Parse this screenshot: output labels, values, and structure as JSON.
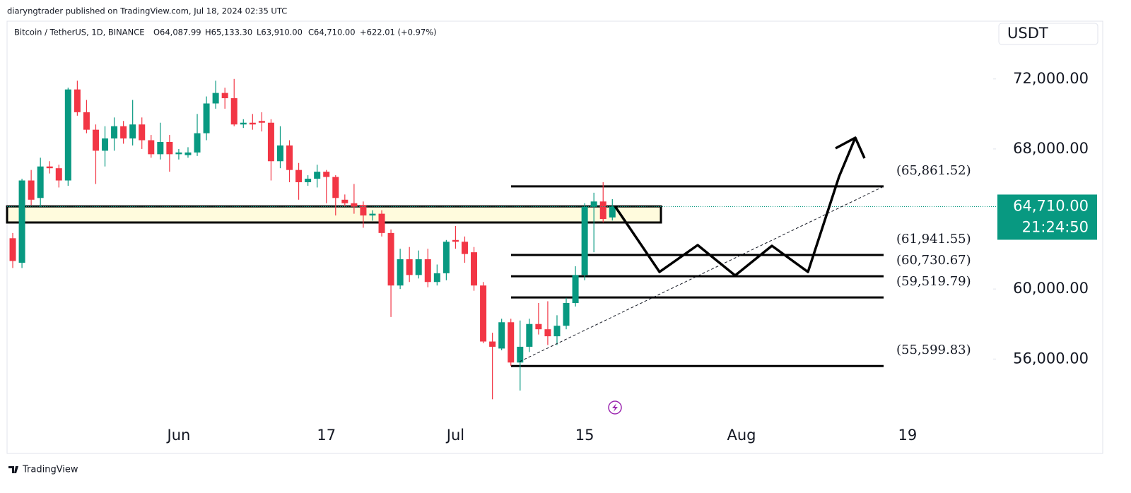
{
  "page": {
    "published": "diaryngtrader published on TradingView.com, Jul 18, 2024 02:35 UTC",
    "footer": "TradingView"
  },
  "chart_data": {
    "type": "candlestick",
    "symbol": "Bitcoin / TetherUS, 1D, BINANCE",
    "ohlc_text": [
      "O64,087.99",
      "H65,133.30",
      "L63,910.00",
      "C64,710.00",
      "+622.01 (+0.97%)"
    ],
    "currency": "USDT",
    "categories": [
      null,
      null,
      null,
      null,
      null,
      null,
      null,
      null,
      null,
      null,
      null,
      null,
      null,
      null,
      null,
      null,
      null,
      null,
      "Jun",
      null,
      null,
      null,
      null,
      null,
      null,
      null,
      null,
      null,
      null,
      null,
      null,
      null,
      null,
      null,
      "17",
      null,
      null,
      null,
      null,
      null,
      null,
      null,
      null,
      null,
      null,
      null,
      null,
      null,
      "Jul",
      null,
      null,
      null,
      null,
      null,
      null,
      null,
      null,
      null,
      null,
      null,
      null,
      null,
      "15",
      null,
      null,
      null,
      null,
      null,
      null,
      null,
      null,
      null,
      null,
      null,
      null,
      null,
      null,
      null,
      null,
      "Aug",
      null,
      null,
      null,
      null,
      null,
      null,
      null,
      null,
      null,
      null,
      null,
      null,
      null,
      null,
      null,
      null,
      null,
      "19",
      null,
      null,
      null,
      null,
      null,
      null,
      null,
      null,
      null
    ],
    "open": [
      62900,
      61500,
      66200,
      65200,
      67000,
      66900,
      66200,
      71400,
      70100,
      69100,
      67900,
      68600,
      69300,
      68600,
      69400,
      68500,
      67700,
      68400,
      67700,
      67650,
      67800,
      68900,
      70600,
      71200,
      70900,
      69400,
      69500,
      69600,
      69500,
      67300,
      68200,
      66800,
      66100,
      66300,
      66700,
      66400,
      65100,
      64900,
      64800,
      64200,
      64300,
      63200,
      60200,
      61700,
      60800,
      61700,
      60400,
      60900,
      62800,
      62700,
      62100,
      60200,
      57000,
      56600,
      58100,
      55800,
      56700,
      58000,
      57700,
      57300,
      57900,
      59200,
      60800,
      64700,
      65000,
      64087.99,
      null,
      null,
      null,
      null,
      null,
      null,
      null,
      null,
      null,
      null,
      null,
      null,
      null,
      null,
      null,
      null,
      null,
      null,
      null,
      null,
      null,
      null,
      null,
      null,
      null,
      null,
      null,
      null,
      null,
      null,
      null,
      null,
      null,
      null,
      null,
      null,
      null,
      null,
      null,
      null,
      null
    ],
    "high": [
      63200,
      66300,
      66800,
      67500,
      67300,
      67100,
      71500,
      71900,
      70800,
      69400,
      69300,
      69800,
      69600,
      70800,
      69800,
      68800,
      69500,
      68800,
      68000,
      68100,
      70000,
      71000,
      71900,
      71500,
      72000,
      69700,
      70000,
      70100,
      69700,
      69300,
      68500,
      67200,
      66500,
      67100,
      66800,
      66500,
      65400,
      66000,
      65000,
      64500,
      64500,
      63400,
      62300,
      62400,
      62200,
      62300,
      61400,
      62800,
      63600,
      63000,
      62400,
      60400,
      57500,
      58300,
      58300,
      58200,
      58300,
      59200,
      59300,
      58500,
      59500,
      61300,
      64900,
      65500,
      66100,
      65133.3,
      null,
      null,
      null,
      null,
      null,
      null,
      null,
      null,
      null,
      null,
      null,
      null,
      null,
      null,
      null,
      null,
      null,
      null,
      null,
      null,
      null,
      null,
      null,
      null,
      null,
      null,
      null,
      null,
      null,
      null,
      null,
      null,
      null,
      null,
      null,
      null,
      null,
      null,
      null,
      null,
      null
    ],
    "low": [
      61200,
      61200,
      64800,
      64700,
      66600,
      65800,
      65900,
      69900,
      68900,
      66000,
      67000,
      67900,
      68300,
      68200,
      68000,
      67500,
      67400,
      66700,
      67400,
      67500,
      67600,
      68500,
      70300,
      70300,
      69300,
      69200,
      69100,
      69000,
      66200,
      66900,
      66100,
      65100,
      65900,
      65800,
      64900,
      64200,
      64700,
      64300,
      63500,
      63900,
      63000,
      58400,
      60000,
      60400,
      60600,
      60100,
      60200,
      60500,
      62300,
      61500,
      59900,
      56900,
      53700,
      56500,
      55600,
      54200,
      56400,
      57400,
      56800,
      56800,
      57700,
      59000,
      60500,
      62100,
      63800,
      63910,
      null,
      null,
      null,
      null,
      null,
      null,
      null,
      null,
      null,
      null,
      null,
      null,
      null,
      null,
      null,
      null,
      null,
      null,
      null,
      null,
      null,
      null,
      null,
      null,
      null,
      null,
      null,
      null,
      null,
      null,
      null,
      null,
      null,
      null,
      null,
      null,
      null,
      null,
      null,
      null,
      null
    ],
    "close": [
      61600,
      66200,
      65100,
      67000,
      66900,
      66200,
      71400,
      70100,
      69100,
      67900,
      68600,
      69300,
      68600,
      69400,
      68500,
      67700,
      68400,
      67700,
      67800,
      67800,
      68900,
      70600,
      71200,
      70900,
      69400,
      69500,
      69400,
      69500,
      67300,
      68200,
      66800,
      66100,
      66300,
      66700,
      66400,
      65200,
      64900,
      64700,
      64200,
      64300,
      63200,
      60200,
      61700,
      60800,
      61700,
      60400,
      60900,
      62700,
      62700,
      62000,
      60200,
      57000,
      56700,
      58100,
      55800,
      56700,
      58000,
      57700,
      57300,
      57900,
      59200,
      60800,
      64700,
      65000,
      64000,
      64710,
      null,
      null,
      null,
      null,
      null,
      null,
      null,
      null,
      null,
      null,
      null,
      null,
      null,
      null,
      null,
      null,
      null,
      null,
      null,
      null,
      null,
      null,
      null,
      null,
      null,
      null,
      null,
      null,
      null,
      null,
      null,
      null,
      null,
      null,
      null,
      null,
      null,
      null,
      null,
      null,
      null
    ],
    "up_color": "#089981",
    "down_color": "#f23645",
    "ylim": [
      52300,
      75300
    ],
    "yticks": [
      {
        "value": 56000,
        "label": "56,000.00"
      },
      {
        "value": 60000,
        "label": "60,000.00"
      },
      {
        "value": 68000,
        "label": "68,000.00"
      },
      {
        "value": 72000,
        "label": "72,000.00"
      }
    ],
    "last_price": {
      "value": 64710,
      "label": "64,710.00"
    },
    "countdown": "21:24:50",
    "zone": [
      63800,
      64720
    ],
    "levels": [
      {
        "value": 65861.52,
        "label": "(65,861.52)"
      },
      {
        "value": 61941.55,
        "label": "(61,941.55)"
      },
      {
        "value": 60730.67,
        "label": "(60,730.67)"
      },
      {
        "value": 59519.79,
        "label": "(59,519.79)"
      },
      {
        "value": 55599.83,
        "label": "(55,599.83)"
      }
    ]
  }
}
